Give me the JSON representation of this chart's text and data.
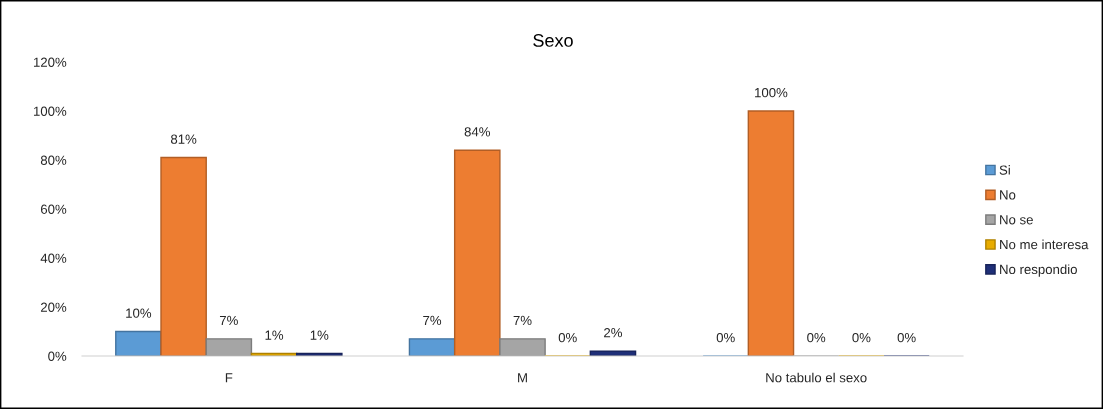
{
  "chart_data": {
    "type": "bar",
    "title": "Sexo",
    "categories": [
      "F",
      "M",
      "No tabulo el sexo"
    ],
    "series": [
      {
        "name": "Si",
        "color": "#5b9bd5",
        "values": [
          10,
          7,
          0
        ],
        "value_labels": [
          "10%",
          "7%",
          "0%"
        ]
      },
      {
        "name": "No",
        "color": "#ed7d31",
        "values": [
          81,
          84,
          100
        ],
        "value_labels": [
          "81%",
          "84%",
          "100%"
        ]
      },
      {
        "name": "No se",
        "color": "#a5a5a5",
        "values": [
          7,
          7,
          0
        ],
        "value_labels": [
          "7%",
          "7%",
          "0%"
        ]
      },
      {
        "name": "No me interesa",
        "color": "#e8ac00",
        "values": [
          1,
          0,
          0
        ],
        "value_labels": [
          "1%",
          "0%",
          "0%"
        ]
      },
      {
        "name": "No respondio",
        "color": "#1f2f78",
        "values": [
          1,
          2,
          0
        ],
        "value_labels": [
          "1%",
          "2%",
          "0%"
        ]
      }
    ],
    "ylim": [
      0,
      120
    ],
    "yticks": [
      {
        "value": 0,
        "label": "0%"
      },
      {
        "value": 20,
        "label": "20%"
      },
      {
        "value": 40,
        "label": "40%"
      },
      {
        "value": 60,
        "label": "60%"
      },
      {
        "value": 80,
        "label": "80%"
      },
      {
        "value": 100,
        "label": "100%"
      },
      {
        "value": 120,
        "label": "120%"
      }
    ],
    "grid": false,
    "legend": "right"
  }
}
